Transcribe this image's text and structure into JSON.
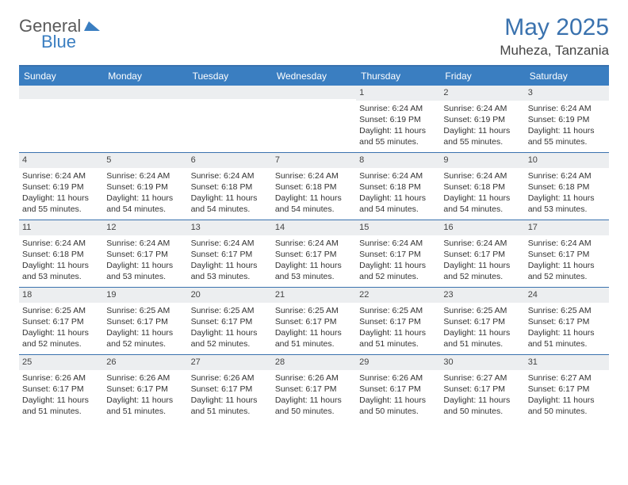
{
  "logo": {
    "text1": "General",
    "text2": "Blue"
  },
  "title": "May 2025",
  "location": "Muheza, Tanzania",
  "colors": {
    "header_blue": "#3a72ae",
    "dayhead_bg": "#3a7ec1",
    "dayhead_fg": "#ffffff",
    "daynum_bg": "#eceef0",
    "rule": "#3a72ae",
    "text": "#333333"
  },
  "day_headers": [
    "Sunday",
    "Monday",
    "Tuesday",
    "Wednesday",
    "Thursday",
    "Friday",
    "Saturday"
  ],
  "weeks": [
    [
      {
        "empty": true
      },
      {
        "empty": true
      },
      {
        "empty": true
      },
      {
        "empty": true
      },
      {
        "n": "1",
        "sr": "6:24 AM",
        "ss": "6:19 PM",
        "dl": "11 hours and 55 minutes."
      },
      {
        "n": "2",
        "sr": "6:24 AM",
        "ss": "6:19 PM",
        "dl": "11 hours and 55 minutes."
      },
      {
        "n": "3",
        "sr": "6:24 AM",
        "ss": "6:19 PM",
        "dl": "11 hours and 55 minutes."
      }
    ],
    [
      {
        "n": "4",
        "sr": "6:24 AM",
        "ss": "6:19 PM",
        "dl": "11 hours and 55 minutes."
      },
      {
        "n": "5",
        "sr": "6:24 AM",
        "ss": "6:19 PM",
        "dl": "11 hours and 54 minutes."
      },
      {
        "n": "6",
        "sr": "6:24 AM",
        "ss": "6:18 PM",
        "dl": "11 hours and 54 minutes."
      },
      {
        "n": "7",
        "sr": "6:24 AM",
        "ss": "6:18 PM",
        "dl": "11 hours and 54 minutes."
      },
      {
        "n": "8",
        "sr": "6:24 AM",
        "ss": "6:18 PM",
        "dl": "11 hours and 54 minutes."
      },
      {
        "n": "9",
        "sr": "6:24 AM",
        "ss": "6:18 PM",
        "dl": "11 hours and 54 minutes."
      },
      {
        "n": "10",
        "sr": "6:24 AM",
        "ss": "6:18 PM",
        "dl": "11 hours and 53 minutes."
      }
    ],
    [
      {
        "n": "11",
        "sr": "6:24 AM",
        "ss": "6:18 PM",
        "dl": "11 hours and 53 minutes."
      },
      {
        "n": "12",
        "sr": "6:24 AM",
        "ss": "6:17 PM",
        "dl": "11 hours and 53 minutes."
      },
      {
        "n": "13",
        "sr": "6:24 AM",
        "ss": "6:17 PM",
        "dl": "11 hours and 53 minutes."
      },
      {
        "n": "14",
        "sr": "6:24 AM",
        "ss": "6:17 PM",
        "dl": "11 hours and 53 minutes."
      },
      {
        "n": "15",
        "sr": "6:24 AM",
        "ss": "6:17 PM",
        "dl": "11 hours and 52 minutes."
      },
      {
        "n": "16",
        "sr": "6:24 AM",
        "ss": "6:17 PM",
        "dl": "11 hours and 52 minutes."
      },
      {
        "n": "17",
        "sr": "6:24 AM",
        "ss": "6:17 PM",
        "dl": "11 hours and 52 minutes."
      }
    ],
    [
      {
        "n": "18",
        "sr": "6:25 AM",
        "ss": "6:17 PM",
        "dl": "11 hours and 52 minutes."
      },
      {
        "n": "19",
        "sr": "6:25 AM",
        "ss": "6:17 PM",
        "dl": "11 hours and 52 minutes."
      },
      {
        "n": "20",
        "sr": "6:25 AM",
        "ss": "6:17 PM",
        "dl": "11 hours and 52 minutes."
      },
      {
        "n": "21",
        "sr": "6:25 AM",
        "ss": "6:17 PM",
        "dl": "11 hours and 51 minutes."
      },
      {
        "n": "22",
        "sr": "6:25 AM",
        "ss": "6:17 PM",
        "dl": "11 hours and 51 minutes."
      },
      {
        "n": "23",
        "sr": "6:25 AM",
        "ss": "6:17 PM",
        "dl": "11 hours and 51 minutes."
      },
      {
        "n": "24",
        "sr": "6:25 AM",
        "ss": "6:17 PM",
        "dl": "11 hours and 51 minutes."
      }
    ],
    [
      {
        "n": "25",
        "sr": "6:26 AM",
        "ss": "6:17 PM",
        "dl": "11 hours and 51 minutes."
      },
      {
        "n": "26",
        "sr": "6:26 AM",
        "ss": "6:17 PM",
        "dl": "11 hours and 51 minutes."
      },
      {
        "n": "27",
        "sr": "6:26 AM",
        "ss": "6:17 PM",
        "dl": "11 hours and 51 minutes."
      },
      {
        "n": "28",
        "sr": "6:26 AM",
        "ss": "6:17 PM",
        "dl": "11 hours and 50 minutes."
      },
      {
        "n": "29",
        "sr": "6:26 AM",
        "ss": "6:17 PM",
        "dl": "11 hours and 50 minutes."
      },
      {
        "n": "30",
        "sr": "6:27 AM",
        "ss": "6:17 PM",
        "dl": "11 hours and 50 minutes."
      },
      {
        "n": "31",
        "sr": "6:27 AM",
        "ss": "6:17 PM",
        "dl": "11 hours and 50 minutes."
      }
    ]
  ],
  "labels": {
    "sunrise": "Sunrise:",
    "sunset": "Sunset:",
    "daylight": "Daylight:"
  }
}
